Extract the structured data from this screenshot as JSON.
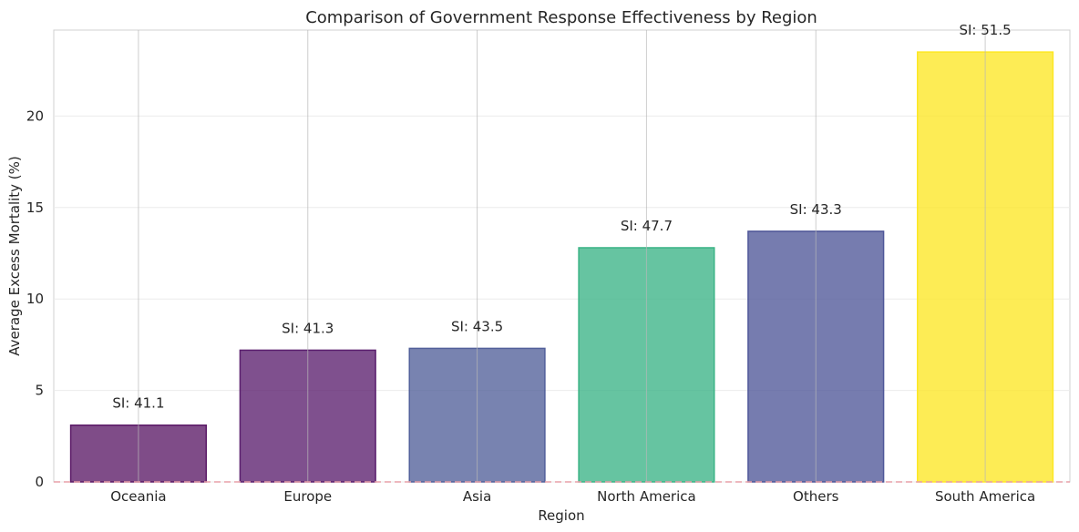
{
  "chart_data": {
    "type": "bar",
    "title": "Comparison of Government Response Effectiveness by Region",
    "xlabel": "Region",
    "ylabel": "Average Excess Mortality (%)",
    "categories": [
      "Oceania",
      "Europe",
      "Asia",
      "North America",
      "Others",
      "South America"
    ],
    "values": [
      3.1,
      7.2,
      7.3,
      12.8,
      13.7,
      23.5
    ],
    "annotations": [
      "SI: 41.1",
      "SI: 41.3",
      "SI: 43.5",
      "SI: 47.7",
      "SI: 43.3",
      "SI: 51.5"
    ],
    "bar_colors": [
      "#5b1a67",
      "#5b1f6e",
      "#52609a",
      "#3bb486",
      "#4f5799",
      "#fde725"
    ],
    "ylim": [
      0,
      24.7
    ],
    "yticks": [
      0,
      5,
      10,
      15,
      20
    ],
    "grid": true,
    "reference_line": {
      "y": 0,
      "color": "#e8a0a8",
      "style": "dashed"
    }
  }
}
